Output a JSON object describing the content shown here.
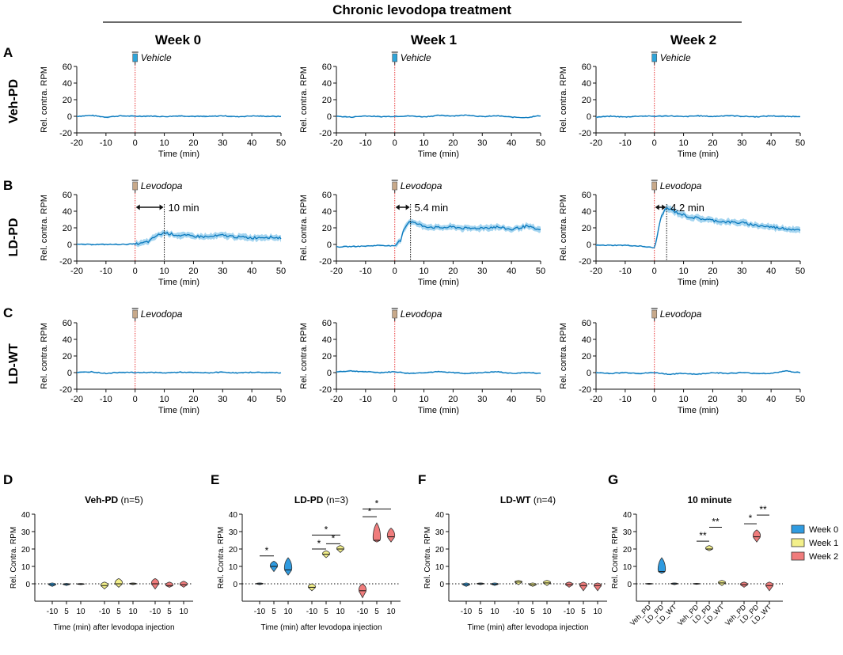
{
  "figure": {
    "main_title": "Chronic levodopa treatment",
    "columns": [
      "Week 0",
      "Week 1",
      "Week 2"
    ],
    "row_letters": [
      "A",
      "B",
      "C"
    ],
    "row_groups": [
      "Veh-PD",
      "LD-PD",
      "LD-WT"
    ],
    "treatments": [
      "Vehicle",
      "Levodopa",
      "Levodopa"
    ],
    "trace_ylabel": "Rel. contra. RPM",
    "trace_xlabel": "Time (min)",
    "trace_x_ticks": [
      "-20",
      "-10",
      "0",
      "10",
      "20",
      "30",
      "40",
      "50"
    ],
    "trace_y_ticks": [
      "-20",
      "0",
      "20",
      "40",
      "60"
    ],
    "onset_labels": [
      "10 min",
      "5.4 min",
      "4.2 min"
    ],
    "bottom_letters": [
      "D",
      "E",
      "F",
      "G"
    ],
    "bottom_titles": [
      {
        "bold": "Veh-PD",
        "rest": " (n=5)"
      },
      {
        "bold": "LD-PD",
        "rest": " (n=3)"
      },
      {
        "bold": "LD-WT",
        "rest": " (n=4)"
      },
      {
        "bold": "10 minute",
        "rest": ""
      }
    ],
    "violin_ylabel": "Rel. Contra. RPM",
    "violin_xlabel": "Time (min) after levodopa injection",
    "violin_y_ticks": [
      "0",
      "10",
      "20",
      "30",
      "40"
    ],
    "violin_x_ticks": [
      "-10",
      "5",
      "10"
    ],
    "g_x_ticks": [
      "Veh_PD",
      "LD_PD",
      "LD_WT"
    ],
    "sig_single": "*",
    "sig_double": "**"
  },
  "colors": {
    "trace": "#0a79bd",
    "band": "#8fcbec",
    "onset_line": "#e8393a",
    "week0": "#2f9be0",
    "week1": "#f3f08a",
    "week2": "#f07c7c",
    "syringe_vehicle": "#2fa3d8",
    "syringe_levodopa": "#c8a98a"
  },
  "legend": {
    "entries": [
      "Week 0",
      "Week 1",
      "Week 2"
    ]
  },
  "chart_data": [
    {
      "panel": "A-C",
      "type": "line",
      "title": "Chronic levodopa treatment",
      "xlabel": "Time (min)",
      "ylabel": "Rel. contra. RPM",
      "xlim": [
        -20,
        50
      ],
      "ylim": [
        -20,
        60
      ],
      "injection_time": 0,
      "series": [
        {
          "name": "Veh-PD Week 0",
          "x": [
            -20,
            -15,
            -10,
            -5,
            0,
            5,
            10,
            15,
            20,
            25,
            30,
            35,
            40,
            45,
            50
          ],
          "values": [
            0,
            1,
            -1,
            0.5,
            0,
            0.3,
            -0.4,
            0.5,
            0,
            -0.3,
            0.6,
            -0.5,
            0.4,
            0,
            -0.2
          ]
        },
        {
          "name": "Veh-PD Week 1",
          "x": [
            -20,
            -15,
            -10,
            -5,
            0,
            5,
            10,
            15,
            20,
            25,
            30,
            35,
            40,
            45,
            50
          ],
          "values": [
            0,
            -1,
            0.5,
            -0.5,
            0,
            0.4,
            -0.6,
            1,
            0.5,
            1.5,
            -0.5,
            0.6,
            -1,
            -1.5,
            0.8
          ]
        },
        {
          "name": "Veh-PD Week 2",
          "x": [
            -20,
            -15,
            -10,
            -5,
            0,
            5,
            10,
            15,
            20,
            25,
            30,
            35,
            40,
            45,
            50
          ],
          "values": [
            -1,
            0,
            -0.8,
            0.3,
            0,
            0.5,
            -0.5,
            0.6,
            -0.3,
            0.9,
            0,
            -0.6,
            0.5,
            -0.3,
            0
          ]
        },
        {
          "name": "LD-PD Week 0",
          "x": [
            -20,
            -10,
            -5,
            0,
            2,
            5,
            7,
            10,
            15,
            20,
            25,
            30,
            35,
            40,
            45,
            50
          ],
          "values": [
            0,
            0,
            0,
            0.5,
            1,
            4,
            10,
            14,
            11,
            10,
            9,
            11,
            9,
            8,
            9,
            8
          ],
          "onset_min": 10
        },
        {
          "name": "LD-PD Week 1",
          "x": [
            -20,
            -10,
            -5,
            0,
            2,
            3,
            5,
            10,
            15,
            20,
            25,
            30,
            35,
            40,
            45,
            50
          ],
          "values": [
            -3,
            -2,
            -1,
            -2,
            5,
            18,
            28,
            22,
            20,
            21,
            19,
            20,
            21,
            18,
            22,
            17
          ],
          "onset_min": 5.4
        },
        {
          "name": "LD-PD Week 2",
          "x": [
            -20,
            -10,
            -5,
            0,
            1,
            2,
            4,
            8,
            12,
            20,
            25,
            30,
            35,
            40,
            45,
            50
          ],
          "values": [
            -1,
            -1,
            -2,
            -4,
            10,
            30,
            44,
            38,
            33,
            29,
            27,
            26,
            23,
            21,
            19,
            18
          ],
          "onset_min": 4.2
        },
        {
          "name": "LD-WT Week 0",
          "x": [
            -20,
            -15,
            -10,
            -5,
            0,
            5,
            10,
            15,
            20,
            25,
            30,
            35,
            40,
            45,
            50
          ],
          "values": [
            0,
            1,
            -1,
            0.5,
            0,
            0.3,
            -0.4,
            0.5,
            0,
            -0.3,
            0.6,
            -0.5,
            0.4,
            0,
            -0.2
          ]
        },
        {
          "name": "LD-WT Week 1",
          "x": [
            -20,
            -15,
            -10,
            -5,
            0,
            5,
            10,
            15,
            20,
            25,
            30,
            35,
            40,
            45,
            50
          ],
          "values": [
            1,
            2,
            1,
            0,
            1,
            -1,
            0,
            1,
            0,
            -1,
            0,
            1,
            -1,
            0,
            -1
          ]
        },
        {
          "name": "LD-WT Week 2",
          "x": [
            -20,
            -15,
            -10,
            -5,
            0,
            5,
            10,
            15,
            20,
            25,
            30,
            35,
            40,
            45,
            50
          ],
          "values": [
            0,
            -1,
            0,
            -1,
            0,
            -2,
            -1,
            -2,
            0,
            -1,
            0,
            -1,
            -1,
            2,
            0
          ]
        }
      ]
    },
    {
      "panel": "D",
      "type": "violin",
      "title": "Veh-PD (n=5)",
      "ylabel": "Rel. Contra. RPM",
      "xlabel": "Time (min) after levodopa injection",
      "ylim": [
        -10,
        40
      ],
      "series": [
        {
          "name": "Week 0",
          "times": [
            "-10",
            "5",
            "10"
          ],
          "medians": [
            -0.5,
            -0.3,
            -0.2
          ],
          "mins": [
            -1.5,
            -1,
            -0.5
          ],
          "maxs": [
            0.5,
            0.3,
            0.2
          ]
        },
        {
          "name": "Week 1",
          "times": [
            "-10",
            "5",
            "10"
          ],
          "medians": [
            -1,
            0,
            0
          ],
          "mins": [
            -3,
            -2,
            -0.5
          ],
          "maxs": [
            1,
            3,
            0.5
          ]
        },
        {
          "name": "Week 2",
          "times": [
            "-10",
            "5",
            "10"
          ],
          "medians": [
            0,
            -1,
            -0.5
          ],
          "mins": [
            -3,
            -2,
            -2
          ],
          "maxs": [
            3,
            1,
            1.5
          ]
        }
      ]
    },
    {
      "panel": "E",
      "type": "violin",
      "title": "LD-PD (n=3)",
      "ylabel": "Rel. Contra. RPM",
      "xlabel": "Time (min) after levodopa injection",
      "ylim": [
        -10,
        40
      ],
      "series": [
        {
          "name": "Week 0",
          "times": [
            "-10",
            "5",
            "10"
          ],
          "medians": [
            0,
            10,
            8
          ],
          "mins": [
            -0.5,
            7,
            5
          ],
          "maxs": [
            0.5,
            13,
            15
          ]
        },
        {
          "name": "Week 1",
          "times": [
            "-10",
            "5",
            "10"
          ],
          "medians": [
            -2,
            17,
            20
          ],
          "mins": [
            -4,
            15,
            18
          ],
          "maxs": [
            0,
            19,
            22
          ]
        },
        {
          "name": "Week 2",
          "times": [
            "-10",
            "5",
            "10"
          ],
          "medians": [
            -4,
            25,
            27
          ],
          "mins": [
            -8,
            24,
            24
          ],
          "maxs": [
            0,
            35,
            32
          ]
        }
      ]
    },
    {
      "panel": "F",
      "type": "violin",
      "title": "LD-WT (n=4)",
      "ylabel": "Rel. Contra. RPM",
      "xlabel": "Time (min) after levodopa injection",
      "ylim": [
        -10,
        40
      ],
      "series": [
        {
          "name": "Week 0",
          "times": [
            "-10",
            "5",
            "10"
          ],
          "medians": [
            -0.5,
            0,
            -0.2
          ],
          "mins": [
            -1.5,
            -0.5,
            -1
          ],
          "maxs": [
            0.5,
            0.5,
            0.5
          ]
        },
        {
          "name": "Week 1",
          "times": [
            "-10",
            "5",
            "10"
          ],
          "medians": [
            1,
            -0.5,
            0.5
          ],
          "mins": [
            -0.5,
            -1.5,
            -1
          ],
          "maxs": [
            2,
            0.5,
            2
          ]
        },
        {
          "name": "Week 2",
          "times": [
            "-10",
            "5",
            "10"
          ],
          "medians": [
            -0.5,
            -1,
            -1
          ],
          "mins": [
            -2,
            -4,
            -4
          ],
          "maxs": [
            1,
            1,
            0.5
          ]
        }
      ]
    },
    {
      "panel": "G",
      "type": "violin",
      "title": "10 minute",
      "ylabel": "Rel. Contra. RPM",
      "ylim": [
        -10,
        40
      ],
      "categories": [
        "Veh_PD",
        "LD_PD",
        "LD_WT"
      ],
      "series": [
        {
          "name": "Week 0",
          "medians": [
            0,
            7,
            0
          ],
          "mins": [
            -0.3,
            6,
            -0.5
          ],
          "maxs": [
            0.3,
            15,
            0.5
          ]
        },
        {
          "name": "Week 1",
          "medians": [
            0,
            20,
            0.5
          ],
          "mins": [
            -0.3,
            19,
            -1
          ],
          "maxs": [
            0.3,
            22,
            2
          ]
        },
        {
          "name": "Week 2",
          "medians": [
            -0.5,
            27,
            -1
          ],
          "mins": [
            -2,
            24,
            -4
          ],
          "maxs": [
            1,
            31,
            1
          ]
        }
      ]
    }
  ]
}
